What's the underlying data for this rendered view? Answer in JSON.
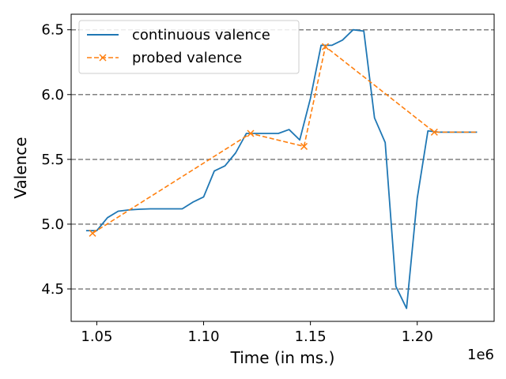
{
  "chart_data": {
    "type": "line",
    "xlabel": "Time (in ms.)",
    "ylabel": "Valence",
    "x_offset_label": "1e6",
    "xlim": [
      1.038,
      1.236
    ],
    "ylim": [
      4.25,
      6.62
    ],
    "x_ticks": [
      1.05,
      1.1,
      1.15,
      1.2
    ],
    "x_tick_labels": [
      "1.05",
      "1.10",
      "1.15",
      "1.20"
    ],
    "y_ticks": [
      4.5,
      5.0,
      5.5,
      6.0,
      6.5
    ],
    "y_tick_labels": [
      "4.5",
      "5.0",
      "5.5",
      "6.0",
      "6.5"
    ],
    "grid": "horizontal dashed at y ticks",
    "legend_position": "upper left",
    "series": [
      {
        "name": "continuous valence",
        "color": "#1f77b4",
        "style": "solid",
        "marker": "none",
        "x": [
          1.045,
          1.05,
          1.055,
          1.06,
          1.065,
          1.07,
          1.075,
          1.08,
          1.085,
          1.09,
          1.095,
          1.1,
          1.105,
          1.11,
          1.115,
          1.12,
          1.125,
          1.13,
          1.135,
          1.14,
          1.145,
          1.15,
          1.155,
          1.16,
          1.165,
          1.17,
          1.175,
          1.18,
          1.185,
          1.19,
          1.195,
          1.2,
          1.205,
          1.21,
          1.215,
          1.22,
          1.228
        ],
        "y": [
          4.95,
          4.95,
          5.05,
          5.1,
          5.11,
          5.115,
          5.118,
          5.118,
          5.118,
          5.118,
          5.17,
          5.21,
          5.41,
          5.45,
          5.55,
          5.7,
          5.7,
          5.7,
          5.7,
          5.73,
          5.65,
          5.97,
          6.38,
          6.38,
          6.42,
          6.5,
          6.49,
          5.82,
          5.63,
          4.52,
          4.35,
          5.2,
          5.72,
          5.71,
          5.71,
          5.71,
          5.71
        ]
      },
      {
        "name": "probed valence",
        "color": "#ff7f0e",
        "style": "dashed",
        "marker": "x",
        "x": [
          1.048,
          1.122,
          1.147,
          1.157,
          1.208
        ],
        "y": [
          4.93,
          5.7,
          5.6,
          6.37,
          5.71
        ],
        "tail_x": [
          1.228
        ],
        "tail_y": [
          5.71
        ]
      }
    ]
  }
}
